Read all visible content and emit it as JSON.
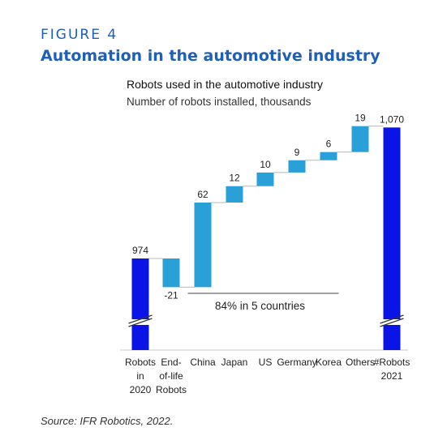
{
  "figure_label": "FIGURE 4",
  "figure_title": "Automation in the automotive industry",
  "source": "Source: IFR Robotics, 2022.",
  "colors": {
    "total": "#0a14e6",
    "step": "#2aa0d8",
    "heading": "#1f5fb8"
  },
  "chart_data": {
    "type": "bar",
    "subtype": "waterfall",
    "title": "Robots used in the automotive industry",
    "subtitle": "Number of robots installed, thousands",
    "categories": [
      [
        "Robots",
        "in",
        "2020"
      ],
      [
        "End-",
        "of-life",
        "Robots"
      ],
      [
        "China"
      ],
      [
        "Japan"
      ],
      [
        "US"
      ],
      [
        "Germany"
      ],
      [
        "Korea"
      ],
      [
        "Others"
      ],
      [
        "#Robots",
        "2021"
      ]
    ],
    "values": [
      974,
      -21,
      62,
      12,
      10,
      9,
      6,
      19,
      1070
    ],
    "labels": [
      "974",
      "-21",
      "62",
      "12",
      "10",
      "9",
      "6",
      "19",
      "1,070"
    ],
    "kinds": [
      "total",
      "step",
      "step",
      "step",
      "step",
      "step",
      "step",
      "step",
      "total"
    ],
    "annotation": {
      "text": "84% in 5 countries",
      "from": 2,
      "to": 6
    },
    "axis_break": true
  }
}
